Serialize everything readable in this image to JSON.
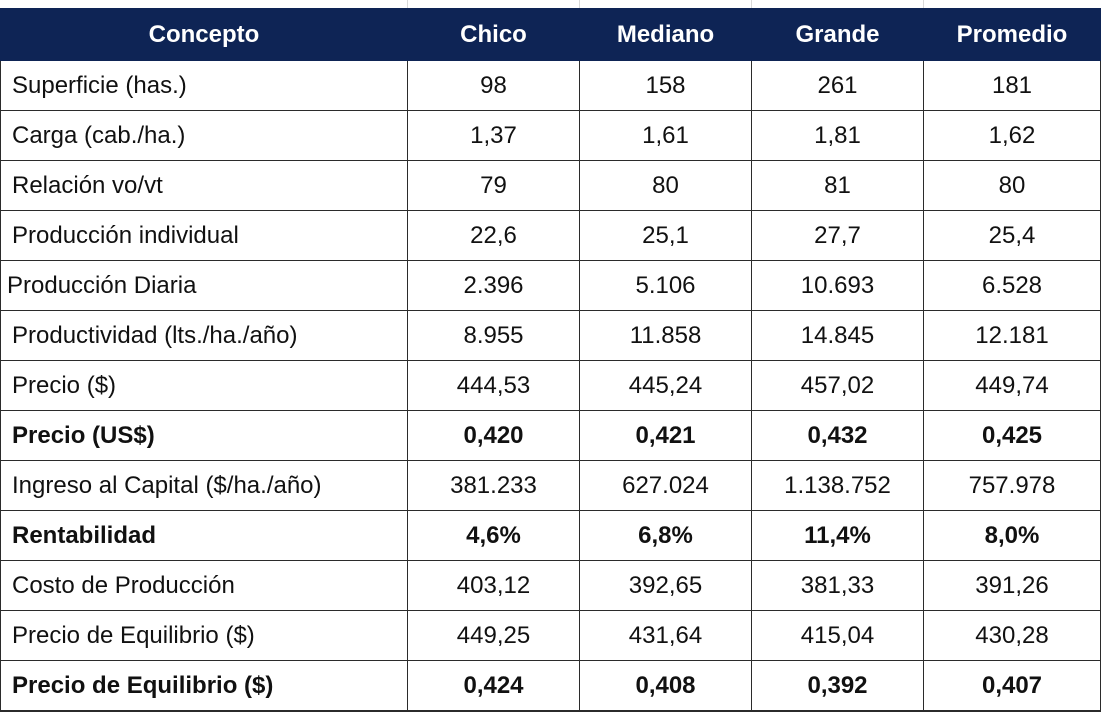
{
  "table": {
    "headers": [
      "Concepto",
      "Chico",
      "Mediano",
      "Grande",
      "Promedio"
    ],
    "rows": [
      {
        "label": "Superficie (has.)",
        "values": [
          "98",
          "158",
          "261",
          "181"
        ],
        "bold": false
      },
      {
        "label": "Carga (cab./ha.)",
        "values": [
          "1,37",
          "1,61",
          "1,81",
          "1,62"
        ],
        "bold": false
      },
      {
        "label": "Relación vo/vt",
        "values": [
          "79",
          "80",
          "81",
          "80"
        ],
        "bold": false
      },
      {
        "label": "Producción individual",
        "values": [
          "22,6",
          "25,1",
          "27,7",
          "25,4"
        ],
        "bold": false
      },
      {
        "label": "Producción Diaria",
        "values": [
          "2.396",
          "5.106",
          "10.693",
          "6.528"
        ],
        "bold": false
      },
      {
        "label": "Productividad (lts./ha./año)",
        "values": [
          "8.955",
          "11.858",
          "14.845",
          "12.181"
        ],
        "bold": false
      },
      {
        "label": "Precio ($)",
        "values": [
          "444,53",
          "445,24",
          "457,02",
          "449,74"
        ],
        "bold": false
      },
      {
        "label": "Precio (US$)",
        "values": [
          "0,420",
          "0,421",
          "0,432",
          "0,425"
        ],
        "bold": true
      },
      {
        "label": "Ingreso al Capital ($/ha./año)",
        "values": [
          "381.233",
          "627.024",
          "1.138.752",
          "757.978"
        ],
        "bold": false
      },
      {
        "label": "Rentabilidad",
        "values": [
          "4,6%",
          "6,8%",
          "11,4%",
          "8,0%"
        ],
        "bold": true
      },
      {
        "label": "Costo de Producción",
        "values": [
          "403,12",
          "392,65",
          "381,33",
          "391,26"
        ],
        "bold": false
      },
      {
        "label": "Precio de Equilibrio ($)",
        "values": [
          "449,25",
          "431,64",
          "415,04",
          "430,28"
        ],
        "bold": false
      },
      {
        "label": "Precio de Equilibrio ($)",
        "values": [
          "0,424",
          "0,408",
          "0,392",
          "0,407"
        ],
        "bold": true
      }
    ]
  },
  "colors": {
    "header_background": "#0e2455",
    "header_text": "#ffffff",
    "grid": "#2b2b2b"
  }
}
